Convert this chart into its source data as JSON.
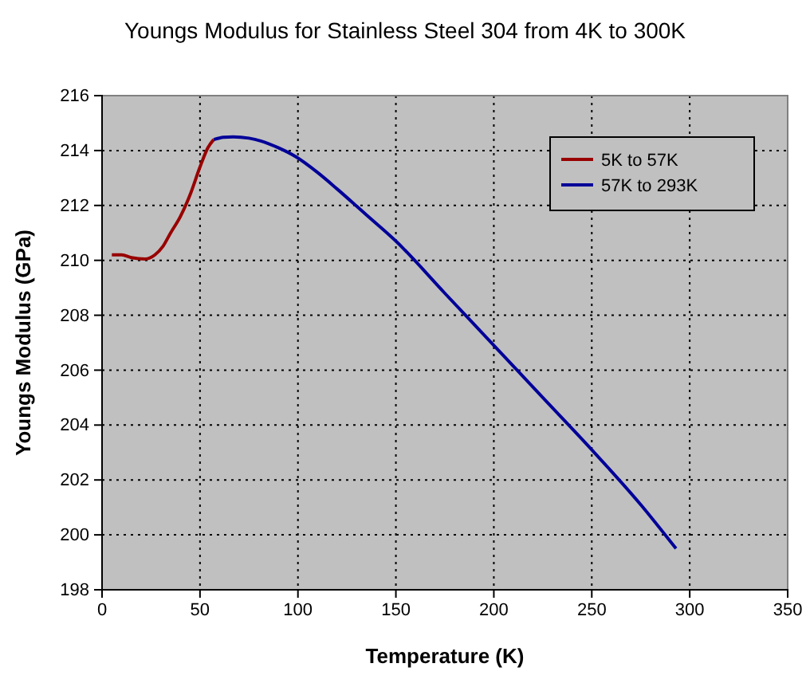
{
  "chart_data": {
    "type": "line",
    "title": "Youngs Modulus for Stainless Steel 304 from 4K to 300K",
    "xlabel": "Temperature (K)",
    "ylabel": "Youngs Modulus (GPa)",
    "xlim": [
      0,
      350
    ],
    "xticks": [
      0,
      50,
      100,
      150,
      200,
      250,
      300,
      350
    ],
    "ylim": [
      198,
      216
    ],
    "yticks": [
      198,
      200,
      202,
      204,
      206,
      208,
      210,
      212,
      214,
      216
    ],
    "grid": true,
    "legend": "top right",
    "series": [
      {
        "name": "5K to 57K",
        "color": "#990000",
        "x": [
          5,
          10,
          15,
          22,
          27,
          31,
          35,
          40,
          45,
          50,
          54,
          57
        ],
        "values": [
          210.2,
          210.2,
          210.1,
          210.05,
          210.2,
          210.5,
          211.0,
          211.6,
          212.4,
          213.4,
          214.1,
          214.4
        ]
      },
      {
        "name": "57K to 293K",
        "color": "#000099",
        "x": [
          57,
          62,
          67,
          75,
          81,
          90,
          99,
          110,
          120,
          135,
          150,
          175,
          200,
          225,
          250,
          275,
          293
        ],
        "values": [
          214.4,
          214.48,
          214.5,
          214.45,
          214.35,
          214.1,
          213.77,
          213.2,
          212.6,
          211.65,
          210.7,
          208.8,
          206.9,
          205.0,
          203.1,
          201.1,
          199.5
        ]
      }
    ]
  }
}
